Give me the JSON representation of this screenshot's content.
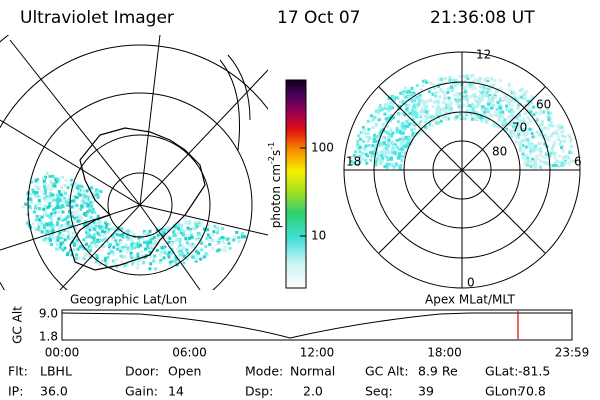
{
  "header": {
    "title": "Ultraviolet Imager",
    "date": "17 Oct 07",
    "time": "21:36:08 UT"
  },
  "colorbar": {
    "label": "photon cm",
    "exp1": "-2",
    "unit2": "s",
    "exp2": "-1",
    "ticks": [
      "100",
      "10"
    ]
  },
  "polar": {
    "mlt": [
      "12",
      "18",
      "6",
      "0"
    ],
    "mlat": [
      "60",
      "70",
      "80"
    ]
  },
  "panels": {
    "left": "Geographic Lat/Lon",
    "right": "Apex MLat/MLT"
  },
  "timeline": {
    "ylabel": "GC Alt",
    "yticks": [
      "9.0",
      "1.8"
    ],
    "xticks": [
      "00:00",
      "06:00",
      "12:00",
      "18:00",
      "23:59"
    ]
  },
  "footer": {
    "rows": [
      [
        {
          "label": "Flt:",
          "value": "LBHL"
        },
        {
          "label": "Door:",
          "value": "Open"
        },
        {
          "label": "Mode:",
          "value": "Normal"
        },
        {
          "label": "GC Alt:",
          "value": "8.9 Re"
        },
        {
          "label": "GLat:",
          "value": "-81.5"
        }
      ],
      [
        {
          "label": "IP:",
          "value": "36.0"
        },
        {
          "label": "Gain:",
          "value": "14"
        },
        {
          "label": "Dsp:",
          "value": "2.0"
        },
        {
          "label": "Seq:",
          "value": "39"
        },
        {
          "label": "GLon:",
          "value": "70.8"
        }
      ]
    ]
  }
}
